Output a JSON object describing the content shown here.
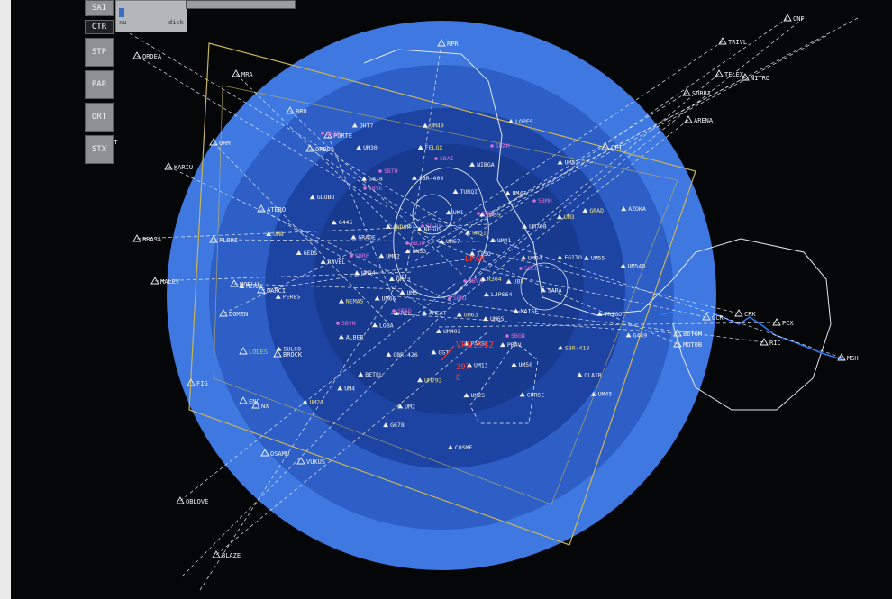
{
  "menu": {
    "items": [
      {
        "label": "SAI"
      },
      {
        "label": "CTR"
      },
      {
        "label": "STP"
      },
      {
        "label": "PAR"
      },
      {
        "label": "ORT"
      },
      {
        "label": "STX"
      }
    ],
    "active_index": 1
  },
  "disk_panel": {
    "label": "disk",
    "value_label": "xu"
  },
  "colors": {
    "screen_bg": "#050608",
    "ring_outer": "#3f78e0",
    "ring_mid": "#2d5fc6",
    "ring_inner": "#1d44a3",
    "ring_core": "#173a8f",
    "sector_line": "#c9b55a",
    "route_line": "#e6ecf5",
    "label_white": "#f0f0f0",
    "label_yellow": "#e8e08a",
    "label_magenta": "#d86fd8",
    "label_red": "#ff3b2a",
    "label_green": "#8fd86f"
  },
  "fixes_outer": [
    "ORDEA",
    "MRA",
    "KARIU",
    "BRASA",
    "MALEV",
    "ATERO",
    "FLORI",
    "MORLU",
    "DOMEN",
    "DARCI",
    "PORTE",
    "ORBOL",
    "BRU",
    "ORM",
    "TRIVL",
    "TELEX",
    "NITRO",
    "SOBRI",
    "ARENA",
    "CNF",
    "RPR",
    "PCX",
    "CRK",
    "RIC",
    "MSH",
    "GCR",
    "BOTOM",
    "MOTOB",
    "OBLOVE",
    "BLAZE",
    "VUKUS",
    "OSAMU",
    "BROCK",
    "LODES",
    "ENC",
    "NX",
    "PEL",
    "PXT",
    "FIG",
    "CPT"
  ],
  "fixes_inner": [
    "R304",
    "RCL",
    "UM1",
    "PRAV",
    "RAVEL",
    "UM3",
    "UM2",
    "UM30",
    "G449",
    "UM5",
    "UM51",
    "PARSE",
    "GRADE",
    "EGITO",
    "BETEL",
    "FELOX",
    "CLAIR",
    "MERAL",
    "TISO",
    "UM402",
    "ANDOR",
    "SARA",
    "ALBER",
    "NIBGA",
    "CURSE",
    "UM8",
    "AZOKA",
    "AMEAT",
    "NEGUS",
    "MAISE",
    "NEMAS",
    "UM47",
    "UM25",
    "GLOBO",
    "UM540",
    "UM21",
    "UM67",
    "UM65",
    "UM24",
    "UM708",
    "UM792",
    "G878",
    "TRIGO",
    "SULCO",
    "LOPES",
    "UM63",
    "UM62",
    "UM64",
    "GBR-426",
    "SBR-409",
    "SBR-418",
    "PERES",
    "UM52",
    "COSME",
    "UM53",
    "UBT",
    "LOBA",
    "TURQI",
    "UM50",
    "GEDS",
    "GRAD",
    "G678",
    "DHT7",
    "LJPS64",
    "UM66",
    "UM59",
    "UM13",
    "G445",
    "UM55",
    "UM4",
    "UM49",
    "UM45",
    "UM73",
    "UM41",
    "GGT"
  ],
  "alert_labels": [
    "VRN1912",
    "397",
    "B",
    "LPAM"
  ],
  "track_labels_magenta": [
    "SBIB",
    "SBVE",
    "SBJP",
    "SBNI",
    "SBAM",
    "SBMH",
    "SBRF",
    "SBSG",
    "SBAI",
    "SBTE",
    "SBLE",
    "SBVN",
    "SBTH",
    "SBJU",
    "SBVA",
    "SBGN"
  ]
}
